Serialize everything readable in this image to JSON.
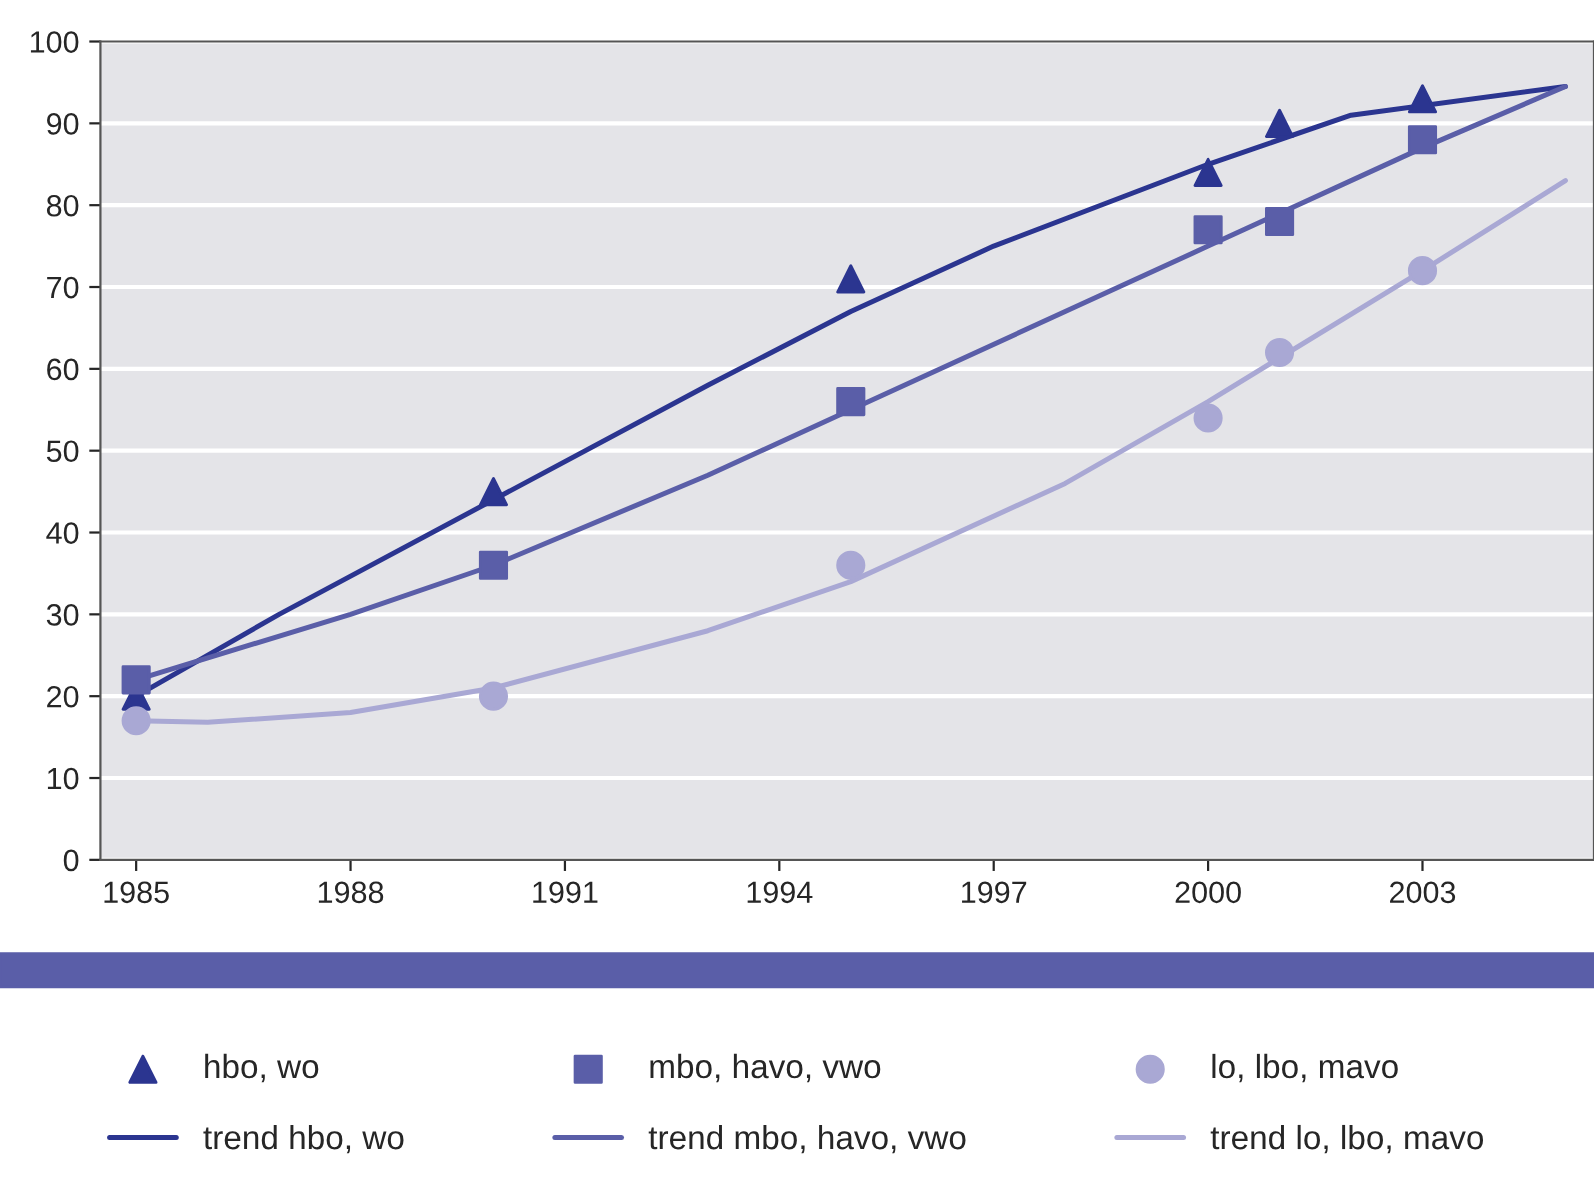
{
  "chart_data": {
    "type": "scatter",
    "xlim": [
      1984.5,
      2005.4
    ],
    "xticks": [
      1985,
      1988,
      1991,
      1994,
      1997,
      2000,
      2003
    ],
    "ylim": [
      0,
      100
    ],
    "yticks": [
      0,
      10,
      20,
      30,
      40,
      50,
      60,
      70,
      80,
      90,
      100
    ],
    "grid": "y",
    "legend": "bottom",
    "series": [
      {
        "name": "hbo, wo",
        "marker": "triangle",
        "color": "#2b3590",
        "x": [
          1985,
          1990,
          1995,
          2000,
          2001,
          2003
        ],
        "values": [
          20,
          45,
          71,
          84,
          90,
          93
        ]
      },
      {
        "name": "trend hbo, wo",
        "type": "line",
        "marker": "none",
        "color": "#2b3590",
        "x": [
          1985,
          1987,
          1990,
          1993,
          1995,
          1997,
          2000,
          2002,
          2005
        ],
        "values": [
          20,
          30,
          44,
          58,
          67,
          75,
          85,
          91,
          94.5
        ]
      },
      {
        "name": "mbo, havo, vwo",
        "marker": "square",
        "color": "#5a5ea8",
        "x": [
          1985,
          1990,
          1995,
          2000,
          2001,
          2003
        ],
        "values": [
          22,
          36,
          56,
          77,
          78,
          88
        ]
      },
      {
        "name": "trend mbo, havo, vwo",
        "type": "line",
        "marker": "none",
        "color": "#5a5ea8",
        "x": [
          1985,
          1988,
          1990,
          1993,
          1995,
          1998,
          2000,
          2003,
          2005
        ],
        "values": [
          22,
          30,
          36,
          47,
          55,
          67,
          75,
          87,
          94.5
        ]
      },
      {
        "name": "lo, lbo, mavo",
        "marker": "circle",
        "color": "#a9a8d4",
        "x": [
          1985,
          1990,
          1995,
          2000,
          2001,
          2003
        ],
        "values": [
          17,
          20,
          36,
          54,
          62,
          72
        ]
      },
      {
        "name": "trend lo, lbo, mavo",
        "type": "line",
        "marker": "none",
        "color": "#a9a8d4",
        "x": [
          1985,
          1986,
          1988,
          1990,
          1993,
          1995,
          1998,
          2000,
          2003,
          2005
        ],
        "values": [
          17,
          16.8,
          18,
          21,
          28,
          34,
          46,
          56,
          72,
          83
        ]
      }
    ]
  }
}
